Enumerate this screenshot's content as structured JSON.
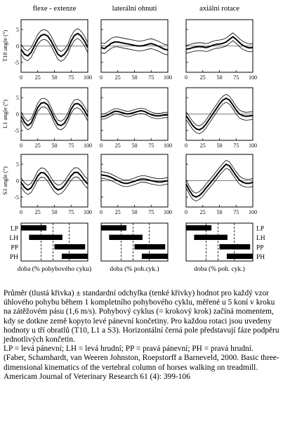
{
  "columns": [
    {
      "title": "flexe - extenze"
    },
    {
      "title": "laterální ohnutí"
    },
    {
      "title": "axiální rotace"
    }
  ],
  "rows": [
    {
      "ylabel": "T10 angle (°)"
    },
    {
      "ylabel": "L1 angle (°)"
    },
    {
      "ylabel": "S3 angle (°)"
    }
  ],
  "yticks": [
    "5",
    "0",
    "-5"
  ],
  "xticks": [
    "0",
    "25",
    "50",
    "75",
    "100"
  ],
  "gait": {
    "labels": [
      "LP",
      "LH",
      "PP",
      "PH"
    ],
    "xlabels": [
      "doba (% pohybového cyku)",
      "doba (% poh.cyk.)",
      "doba (% poh. cyk.)"
    ],
    "bars": [
      [
        0,
        38
      ],
      [
        12,
        62
      ],
      [
        50,
        96
      ],
      [
        61,
        100
      ]
    ],
    "dashes": [
      30,
      48,
      72
    ]
  },
  "chart_data": {
    "type": "line",
    "note_units": "x = % of movement cycle, y = angle in degrees",
    "x": [
      0,
      5,
      10,
      15,
      20,
      25,
      30,
      35,
      40,
      45,
      50,
      55,
      60,
      65,
      70,
      75,
      80,
      85,
      90,
      95,
      100
    ],
    "ylim": [
      -8,
      8
    ],
    "xlim": [
      0,
      100
    ],
    "panels": [
      {
        "row": "T10",
        "col": "flexe - extenze",
        "mean": [
          -1,
          -2.5,
          -3,
          -2,
          0,
          2,
          3.2,
          3.5,
          3,
          1.5,
          -0.5,
          -2.5,
          -3.2,
          -2.5,
          -1,
          1.5,
          3.2,
          3.8,
          3,
          1.5,
          -0.5
        ],
        "sd": 1.5
      },
      {
        "row": "T10",
        "col": "laterální ohnutí",
        "mean": [
          -0.5,
          -0.8,
          0,
          0.8,
          1.2,
          1.2,
          1,
          0.8,
          0.6,
          0.4,
          0.2,
          0,
          0,
          0.2,
          0.5,
          0.7,
          0.4,
          0,
          -0.5,
          -1,
          -1.2
        ],
        "sd": 1.5
      },
      {
        "row": "T10",
        "col": "axiální rotace",
        "mean": [
          -1,
          -0.8,
          -0.5,
          -0.3,
          -0.2,
          -0.3,
          -0.5,
          -0.2,
          0.2,
          0.5,
          0.6,
          0.8,
          1.2,
          2,
          2.8,
          2,
          1,
          0.2,
          -0.3,
          -0.6,
          -0.5
        ],
        "sd": 1.2
      },
      {
        "row": "L1",
        "col": "flexe - extenze",
        "mean": [
          -0.5,
          -2.5,
          -3.5,
          -2.8,
          -0.5,
          2,
          3.3,
          3.5,
          2.8,
          0.8,
          -1.5,
          -3.2,
          -3.5,
          -2.8,
          -1,
          1.5,
          3,
          3.2,
          2.5,
          1,
          -0.8
        ],
        "sd": 1.3
      },
      {
        "row": "L1",
        "col": "laterální ohnutí",
        "mean": [
          -0.8,
          -0.7,
          -0.3,
          0.3,
          0.8,
          0.8,
          0.5,
          0.2,
          0,
          0.2,
          0.5,
          0.8,
          1,
          0.8,
          0.3,
          -0.2,
          -0.5,
          -0.6,
          -0.5,
          -0.3,
          -0.3
        ],
        "sd": 0.8
      },
      {
        "row": "L1",
        "col": "axiální rotace",
        "mean": [
          -0.5,
          -2,
          -3.5,
          -4.5,
          -4.8,
          -4.2,
          -3,
          -1.5,
          0,
          1.5,
          3,
          4.2,
          4.8,
          4.2,
          2.8,
          1.2,
          0,
          -0.5,
          -0.7,
          -0.6,
          -0.5
        ],
        "sd": 1.2
      },
      {
        "row": "S3",
        "col": "flexe - extenze",
        "mean": [
          -0.5,
          -2,
          -2.8,
          -2.2,
          -0.5,
          1.5,
          2.5,
          2.3,
          1.2,
          -0.5,
          -2,
          -2.8,
          -2.5,
          -1.5,
          0,
          1.5,
          2.5,
          2.5,
          1.5,
          0,
          -1
        ],
        "sd": 1.4
      },
      {
        "row": "S3",
        "col": "laterální ohnutí",
        "mean": [
          1.8,
          1.6,
          1.4,
          1,
          0.5,
          0,
          -0.5,
          -0.8,
          -0.8,
          -0.5,
          -0.2,
          0.2,
          0.5,
          0.5,
          0.3,
          0,
          -0.2,
          -0.4,
          -0.4,
          -0.2,
          0
        ],
        "sd": 1.0
      },
      {
        "row": "S3",
        "col": "axiální rotace",
        "mean": [
          -1,
          -3,
          -4.5,
          -5,
          -4.5,
          -3.5,
          -2.2,
          -1,
          0.2,
          1.5,
          2.8,
          4,
          5,
          4.5,
          3,
          1.5,
          0.2,
          -0.5,
          -0.8,
          -0.8,
          -0.5
        ],
        "sd": 1.2
      }
    ]
  },
  "caption": {
    "p1": "Průměr (tlustá křivka) ± standardní odchylka (tenké křivky) hodnot pro každý vzor úhlového pohybu během 1 kompletního pohybového cyklu, měřené u 5 koní v kroku na zátěžovém pásu (1,6 m/s). Pohybový cyklus (= krokový krok) začíná momentem, kdy se dotkne země kopyto levé pánevní končetiny. Pro každou rotaci jsou uvedeny hodnoty u tří obratlů (T10, L1 a S3). Horizontální černá pole představují fáze podpěru jednotlivých končetin.",
    "p2": "LP = levá pánevní; LH = levá hrudní; PP = pravá pánevní; PH = pravá hrudní.",
    "p3": "(Faber, Schamhardt, van Weeren Johnston, Roepstorff a Barneveld, 2000. Basic three-dimensional kinematics of the vertebral column of horses walking on treadmill. Americam Journal of Veterinary Research 61 (4): 399-106"
  }
}
